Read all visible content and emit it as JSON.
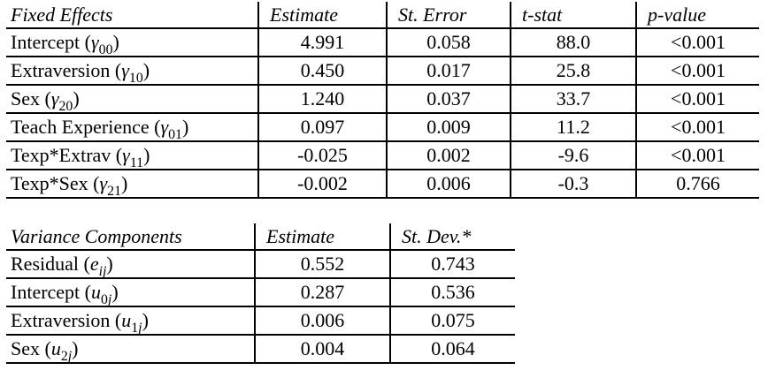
{
  "page": {
    "background_color": "#ffffff",
    "text_color": "#000000",
    "rule_color": "#000000"
  },
  "fixed_effects_table": {
    "headers": [
      "Fixed Effects",
      "Estimate",
      "St. Error",
      "t-stat",
      "p-value"
    ],
    "rows": [
      {
        "label_html": "Intercept (<i>γ</i><sub>00</sub>)",
        "label_text": "Intercept (γ00)",
        "estimate": "4.991",
        "st_error": "0.058",
        "t_stat": "88.0",
        "p_value": "<0.001"
      },
      {
        "label_html": "Extraversion (<i>γ</i><sub>10</sub>)",
        "label_text": "Extraversion (γ10)",
        "estimate": "0.450",
        "st_error": "0.017",
        "t_stat": "25.8",
        "p_value": "<0.001"
      },
      {
        "label_html": "Sex (<i>γ</i><sub>20</sub>)",
        "label_text": "Sex (γ20)",
        "estimate": "1.240",
        "st_error": "0.037",
        "t_stat": "33.7",
        "p_value": "<0.001"
      },
      {
        "label_html": "Teach Experience (<i>γ</i><sub>01</sub>)",
        "label_text": "Teach Experience (γ01)",
        "estimate": "0.097",
        "st_error": "0.009",
        "t_stat": "11.2",
        "p_value": "<0.001"
      },
      {
        "label_html": "Texp*Extrav (<i>γ</i><sub>11</sub>)",
        "label_text": "Texp*Extrav (γ11)",
        "estimate": "-0.025",
        "st_error": "0.002",
        "t_stat": "-9.6",
        "p_value": "<0.001"
      },
      {
        "label_html": "Texp*Sex (<i>γ</i><sub>21</sub>)",
        "label_text": "Texp*Sex (γ21)",
        "estimate": "-0.002",
        "st_error": "0.006",
        "t_stat": "-0.3",
        "p_value": "0.766"
      }
    ]
  },
  "variance_components_table": {
    "headers": [
      "Variance Components",
      "Estimate",
      "St. Dev.*"
    ],
    "rows": [
      {
        "label_html": "Residual (<i>e</i><sub><i>ij</i></sub>)",
        "label_text": "Residual (eij)",
        "estimate": "0.552",
        "st_dev": "0.743"
      },
      {
        "label_html": "Intercept (<i>u</i><sub>0<i>j</i></sub>)",
        "label_text": "Intercept (u0j)",
        "estimate": "0.287",
        "st_dev": "0.536"
      },
      {
        "label_html": "Extraversion (<i>u</i><sub>1<i>j</i></sub>)",
        "label_text": "Extraversion (u1j)",
        "estimate": "0.006",
        "st_dev": "0.075"
      },
      {
        "label_html": "Sex (<i>u</i><sub>2<i>j</i></sub>)",
        "label_text": "Sex (u2j)",
        "estimate": "0.004",
        "st_dev": "0.064"
      }
    ]
  }
}
